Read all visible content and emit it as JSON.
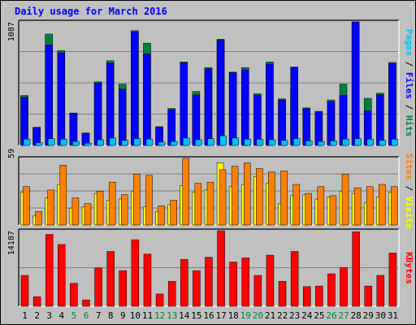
{
  "title": "Daily usage for March 2016",
  "colors": {
    "hits": "#008040",
    "files": "#0000ff",
    "pages": "#00c0ff",
    "visits": "#ffff00",
    "sites": "#ff8000",
    "kbytes": "#ff0000",
    "weekend": "#008040",
    "weekday": "#000000",
    "background": "#c0c0c0"
  },
  "chart_data": [
    {
      "type": "bar",
      "title": "Daily usage for March 2016",
      "categories": [
        "1",
        "2",
        "3",
        "4",
        "5",
        "6",
        "7",
        "8",
        "9",
        "10",
        "11",
        "12",
        "13",
        "14",
        "15",
        "16",
        "17",
        "18",
        "19",
        "20",
        "21",
        "22",
        "23",
        "24",
        "25",
        "26",
        "27",
        "28",
        "29",
        "30",
        "31"
      ],
      "weekend_days": [
        "5",
        "6",
        "12",
        "13",
        "19",
        "20",
        "26",
        "27"
      ],
      "ymax_label": "1087",
      "ylim": [
        0,
        1087
      ],
      "grid": true,
      "right_labels": [
        "Pages",
        "Files",
        "Hits"
      ],
      "series": [
        {
          "name": "Hits",
          "values": [
            440,
            160,
            980,
            835,
            285,
            110,
            560,
            745,
            540,
            1010,
            900,
            165,
            325,
            735,
            475,
            685,
            935,
            645,
            685,
            455,
            735,
            410,
            495,
            330,
            300,
            400,
            540,
            1087,
            415,
            460,
            730
          ]
        },
        {
          "name": "Files",
          "values": [
            425,
            155,
            885,
            815,
            280,
            105,
            550,
            725,
            495,
            1000,
            805,
            160,
            315,
            725,
            445,
            675,
            925,
            640,
            665,
            440,
            715,
            400,
            690,
            325,
            295,
            385,
            440,
            1087,
            305,
            445,
            720
          ]
        },
        {
          "name": "Pages",
          "values": [
            55,
            25,
            60,
            55,
            35,
            20,
            50,
            65,
            45,
            60,
            55,
            30,
            35,
            65,
            50,
            60,
            85,
            65,
            55,
            55,
            50,
            45,
            60,
            40,
            35,
            40,
            55,
            60,
            55,
            45,
            55
          ]
        }
      ]
    },
    {
      "type": "bar",
      "categories": [
        "1",
        "2",
        "3",
        "4",
        "5",
        "6",
        "7",
        "8",
        "9",
        "10",
        "11",
        "12",
        "13",
        "14",
        "15",
        "16",
        "17",
        "18",
        "19",
        "20",
        "21",
        "22",
        "23",
        "24",
        "25",
        "26",
        "27",
        "28",
        "29",
        "30",
        "31"
      ],
      "ymax_label": "59",
      "ylim": [
        0,
        59
      ],
      "grid": true,
      "right_labels": [
        "Sites",
        "Visits"
      ],
      "series": [
        {
          "name": "Sites",
          "values": [
            34,
            12,
            31,
            53,
            24,
            19,
            30,
            38,
            27,
            45,
            44,
            17,
            22,
            59,
            37,
            38,
            49,
            52,
            55,
            50,
            47,
            48,
            36,
            28,
            34,
            26,
            45,
            33,
            34,
            36,
            34
          ]
        },
        {
          "name": "Visits",
          "values": [
            29,
            8,
            24,
            36,
            15,
            16,
            28,
            22,
            23,
            30,
            16,
            12,
            18,
            35,
            29,
            31,
            55,
            34,
            36,
            43,
            37,
            19,
            26,
            27,
            23,
            25,
            30,
            28,
            20,
            25,
            29
          ]
        }
      ]
    },
    {
      "type": "bar",
      "categories": [
        "1",
        "2",
        "3",
        "4",
        "5",
        "6",
        "7",
        "8",
        "9",
        "10",
        "11",
        "12",
        "13",
        "14",
        "15",
        "16",
        "17",
        "18",
        "19",
        "20",
        "21",
        "22",
        "23",
        "24",
        "25",
        "26",
        "27",
        "28",
        "29",
        "30",
        "31"
      ],
      "ymax_label": "14187",
      "ylim": [
        0,
        14187
      ],
      "grid": true,
      "right_labels": [
        "KBytes"
      ],
      "series": [
        {
          "name": "KBytes",
          "values": [
            5800,
            1800,
            13500,
            11600,
            4300,
            1200,
            7200,
            10300,
            6700,
            12500,
            9800,
            2300,
            4700,
            8800,
            6700,
            9200,
            14187,
            8300,
            9100,
            5800,
            9600,
            4700,
            10300,
            3700,
            3800,
            6100,
            7300,
            14000,
            3800,
            5800,
            10000
          ]
        }
      ]
    }
  ]
}
